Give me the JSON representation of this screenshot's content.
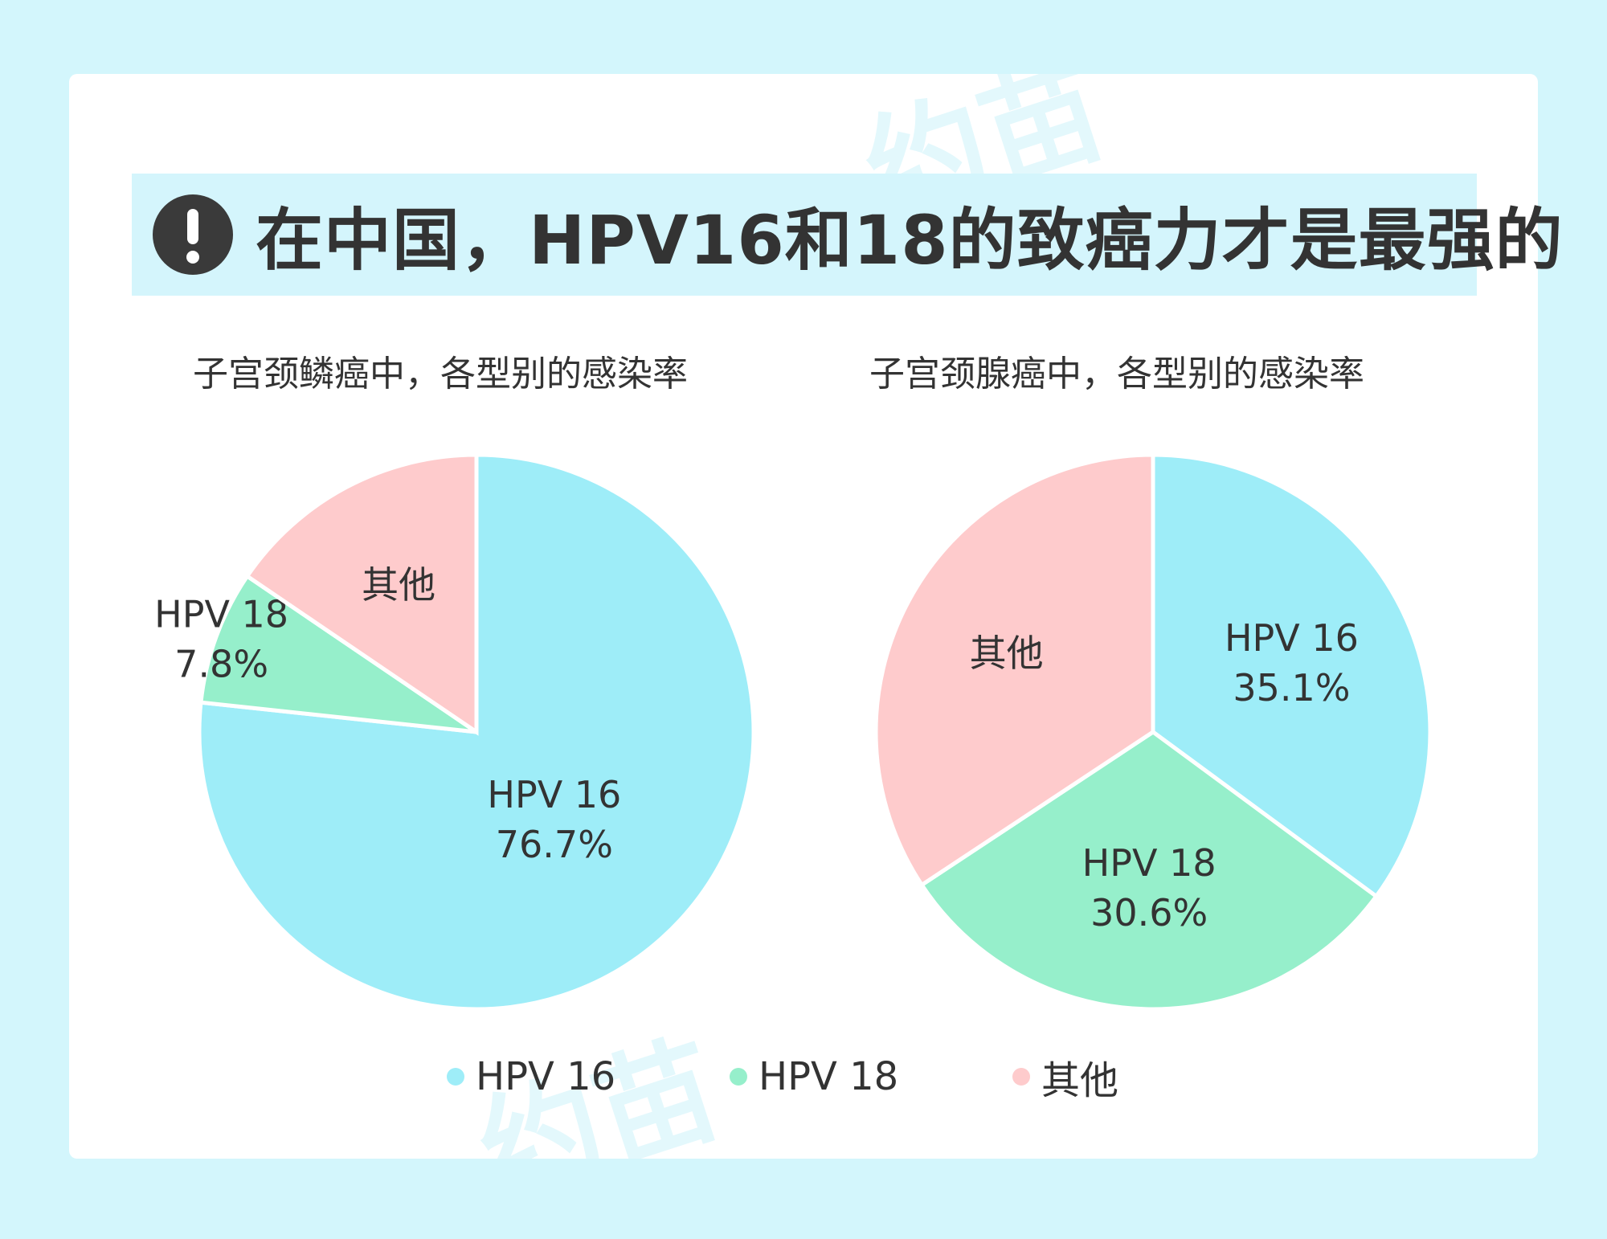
{
  "header": {
    "title": "在中国，HPV16和18的致癌力才是最强的",
    "icon": "exclamation-circle-icon"
  },
  "watermark": "约苗",
  "colors": {
    "hpv16": "#9eedf8",
    "hpv18": "#96efcb",
    "other": "#fecbcc",
    "text": "#333333"
  },
  "legend": [
    {
      "label": "HPV 16",
      "color": "#9eedf8"
    },
    {
      "label": "HPV 18",
      "color": "#96efcb"
    },
    {
      "label": "其他",
      "color": "#fecbcc"
    }
  ],
  "chart_data": [
    {
      "type": "pie",
      "title": "子宫颈鳞癌中，各型别的感染率",
      "slices": [
        {
          "label": "HPV 16",
          "value": 76.7,
          "value_label": "76.7%",
          "color": "#9eedf8"
        },
        {
          "label": "HPV 18",
          "value": 7.8,
          "value_label": "7.8%",
          "color": "#96efcb"
        },
        {
          "label": "其他",
          "value": 15.5,
          "value_label": "",
          "color": "#fecbcc"
        }
      ]
    },
    {
      "type": "pie",
      "title": "子宫颈腺癌中，各型别的感染率",
      "slices": [
        {
          "label": "HPV 16",
          "value": 35.1,
          "value_label": "35.1%",
          "color": "#9eedf8"
        },
        {
          "label": "HPV 18",
          "value": 30.6,
          "value_label": "30.6%",
          "color": "#96efcb"
        },
        {
          "label": "其他",
          "value": 34.3,
          "value_label": "",
          "color": "#fecbcc"
        }
      ]
    }
  ]
}
